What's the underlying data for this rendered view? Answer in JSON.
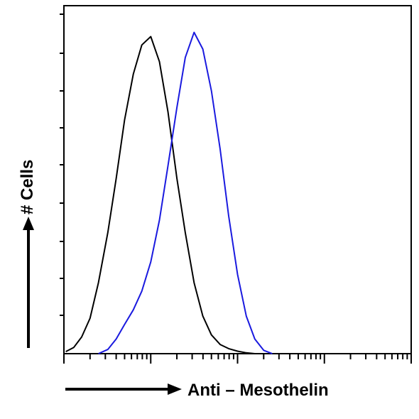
{
  "chart_data": {
    "type": "line",
    "title": "",
    "xlabel": "Anti – Mesothelin",
    "ylabel": "# Cells",
    "x_scale": "log",
    "xlim": [
      1,
      10000
    ],
    "ylim": [
      0,
      8
    ],
    "grid": false,
    "legend": "none",
    "series": [
      {
        "color": "#000000",
        "x": [
          1.05,
          1.3,
          1.6,
          2.0,
          2.5,
          3.2,
          4.0,
          5.0,
          6.3,
          7.9,
          10,
          12.6,
          15.8,
          20,
          25,
          31.6,
          39.8,
          50,
          63,
          79,
          100,
          126,
          158
        ],
        "y": [
          0.05,
          0.15,
          0.4,
          0.85,
          1.7,
          2.9,
          4.2,
          5.6,
          6.7,
          7.4,
          7.6,
          7.0,
          5.8,
          4.2,
          2.9,
          1.7,
          0.9,
          0.45,
          0.22,
          0.12,
          0.06,
          0.02,
          0.0
        ]
      },
      {
        "color": "#1a1adf",
        "x": [
          2.5,
          3.2,
          4.0,
          5.0,
          6.3,
          7.9,
          10,
          12.6,
          15.8,
          20,
          25,
          31.6,
          39.8,
          50,
          63,
          79,
          100,
          126,
          158,
          200,
          251
        ],
        "y": [
          0.0,
          0.1,
          0.35,
          0.7,
          1.05,
          1.5,
          2.2,
          3.2,
          4.5,
          5.9,
          7.1,
          7.7,
          7.3,
          6.3,
          4.9,
          3.3,
          1.9,
          0.9,
          0.35,
          0.08,
          0.0
        ]
      }
    ]
  }
}
